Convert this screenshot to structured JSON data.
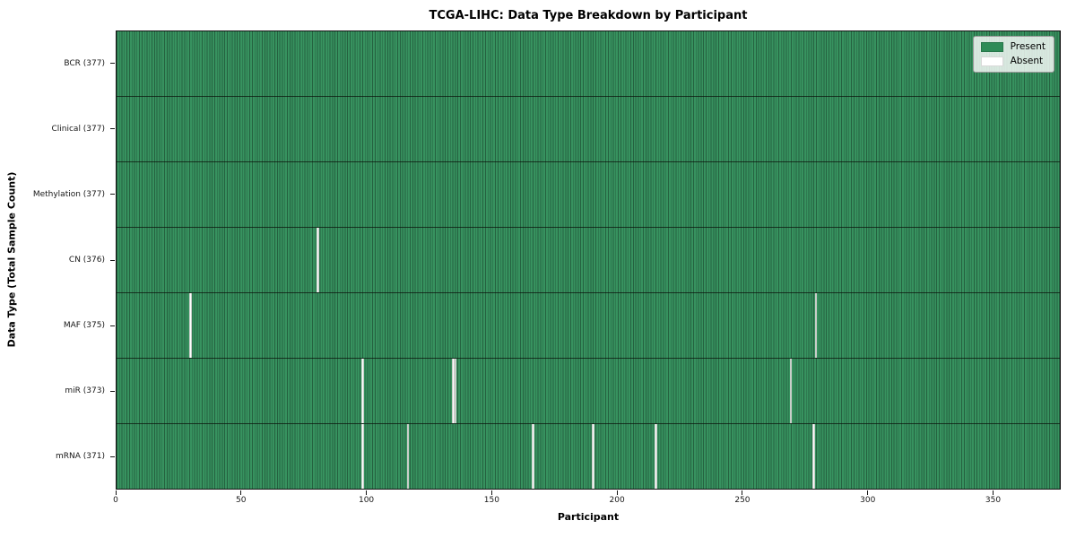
{
  "chart_data": {
    "type": "heatmap",
    "title": "TCGA-LIHC: Data Type Breakdown by Participant",
    "xlabel": "Participant",
    "ylabel": "Data Type (Total Sample Count)",
    "n_participants": 377,
    "x_ticks": [
      0,
      50,
      100,
      150,
      200,
      250,
      300,
      350
    ],
    "x_range": [
      0,
      377
    ],
    "grid": "cell-edges",
    "legend_position": "upper-right",
    "legend": [
      {
        "label": "Present",
        "color": "#2e8b57"
      },
      {
        "label": "Absent",
        "color": "#ffffff"
      }
    ],
    "colors": {
      "present_fill": "#2e8b57",
      "absent_fill": "#ffffff",
      "cell_edge": "#1f4d35",
      "row_separator": "#141414"
    },
    "rows": [
      {
        "name": "BCR",
        "label": "BCR (377)",
        "total": 377,
        "absent_participants": []
      },
      {
        "name": "Clinical",
        "label": "Clinical (377)",
        "total": 377,
        "absent_participants": []
      },
      {
        "name": "Methylation",
        "label": "Methylation (377)",
        "total": 377,
        "absent_participants": []
      },
      {
        "name": "CN",
        "label": "CN (376)",
        "total": 376,
        "absent_participants": [
          80
        ]
      },
      {
        "name": "MAF",
        "label": "MAF (375)",
        "total": 375,
        "absent_participants": [
          29,
          279
        ]
      },
      {
        "name": "miR",
        "label": "miR (373)",
        "total": 373,
        "absent_participants": [
          98,
          134,
          135,
          269
        ]
      },
      {
        "name": "mRNA",
        "label": "mRNA (371)",
        "total": 371,
        "absent_participants": [
          98,
          116,
          166,
          190,
          215,
          278
        ]
      }
    ]
  }
}
